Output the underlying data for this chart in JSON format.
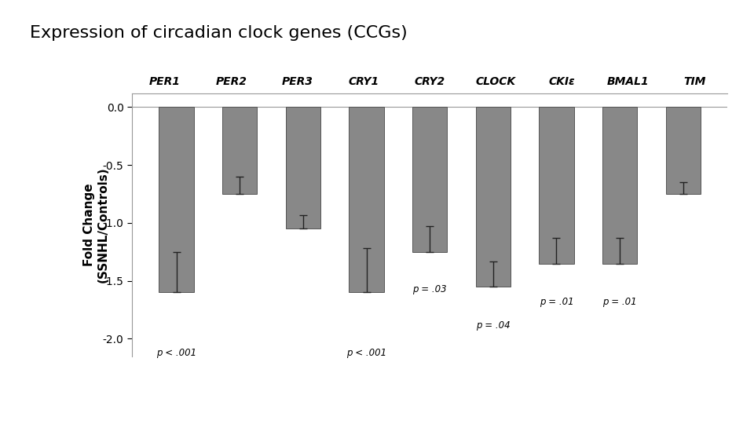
{
  "title": "Expression of circadian clock genes (CCGs)",
  "categories": [
    "PER1",
    "PER2",
    "PER3",
    "CRY1",
    "CRY2",
    "CLOCK",
    "CKIε",
    "BMAL1",
    "TIM"
  ],
  "values": [
    -1.6,
    -0.75,
    -1.05,
    -1.6,
    -1.25,
    -1.55,
    -1.35,
    -1.35,
    -0.75
  ],
  "errors": [
    0.35,
    0.15,
    0.12,
    0.38,
    0.22,
    0.22,
    0.22,
    0.22,
    0.1
  ],
  "bar_color": "#888888",
  "bar_edge_color": "#555555",
  "ylabel_line1": "Fold Change",
  "ylabel_line2": "(SSNHL/Controls)",
  "ylim": [
    -2.15,
    0.12
  ],
  "yticks": [
    0.0,
    -0.5,
    -1.0,
    -1.5,
    -2.0
  ],
  "p_labels": [
    {
      "xi": 0,
      "y": -2.08,
      "text": "p < .001"
    },
    {
      "xi": 3,
      "y": -2.08,
      "text": "p < .001"
    },
    {
      "xi": 4,
      "y": -1.53,
      "text": "p = .03"
    },
    {
      "xi": 5,
      "y": -1.84,
      "text": "p = .04"
    },
    {
      "xi": 6,
      "y": -1.64,
      "text": "p = .01"
    },
    {
      "xi": 7,
      "y": -1.64,
      "text": "p = .01"
    }
  ],
  "title_fontsize": 16,
  "ylabel_fontsize": 11,
  "tick_label_fontsize": 10,
  "cat_label_fontsize": 10
}
